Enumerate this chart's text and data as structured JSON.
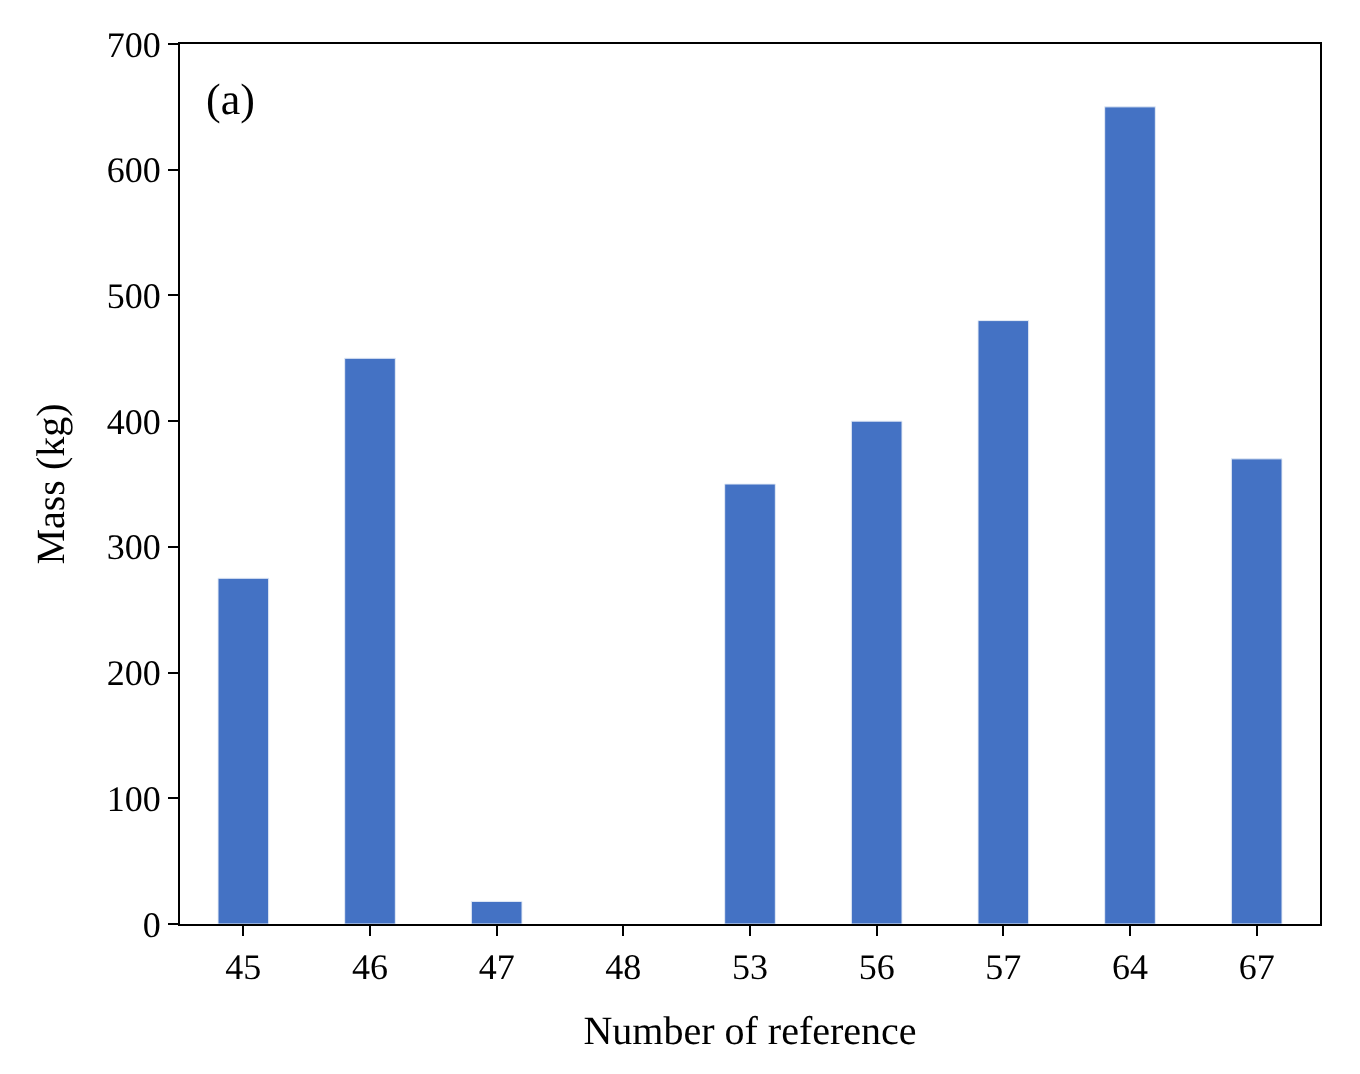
{
  "chart_data": {
    "type": "bar",
    "xlabel": "Number of reference",
    "ylabel": "Mass (kg)",
    "categories": [
      "45",
      "46",
      "47",
      "48",
      "53",
      "56",
      "57",
      "64",
      "67"
    ],
    "values": [
      275,
      450,
      18,
      null,
      350,
      400,
      480,
      650,
      370
    ],
    "color": "#4472c4",
    "ylim": [
      0,
      700
    ],
    "yticks": [
      0,
      100,
      200,
      300,
      400,
      500,
      600,
      700
    ],
    "legend": false,
    "annotations": [
      "(a)"
    ]
  }
}
